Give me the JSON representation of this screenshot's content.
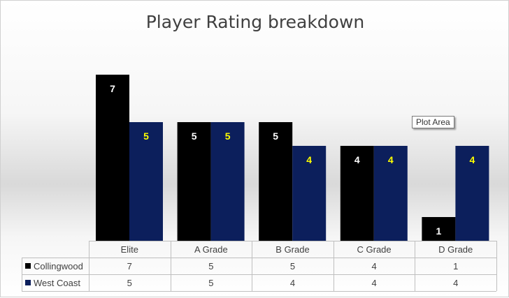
{
  "chart_data": {
    "type": "bar",
    "title": "Player Rating breakdown",
    "categories": [
      "Elite",
      "A Grade",
      "B Grade",
      "C Grade",
      "D Grade"
    ],
    "series": [
      {
        "name": "Collingwood",
        "values": [
          7,
          5,
          5,
          4,
          1
        ],
        "color": "#000000",
        "label_color": "#ffffff"
      },
      {
        "name": "West Coast",
        "values": [
          5,
          5,
          4,
          4,
          4
        ],
        "color": "#0c1f5c",
        "label_color": "#ffff00"
      }
    ],
    "ylim": [
      0,
      7
    ],
    "grid": false,
    "legend": "data-table",
    "data_labels": true
  },
  "tooltip": {
    "text": "Plot Area"
  }
}
